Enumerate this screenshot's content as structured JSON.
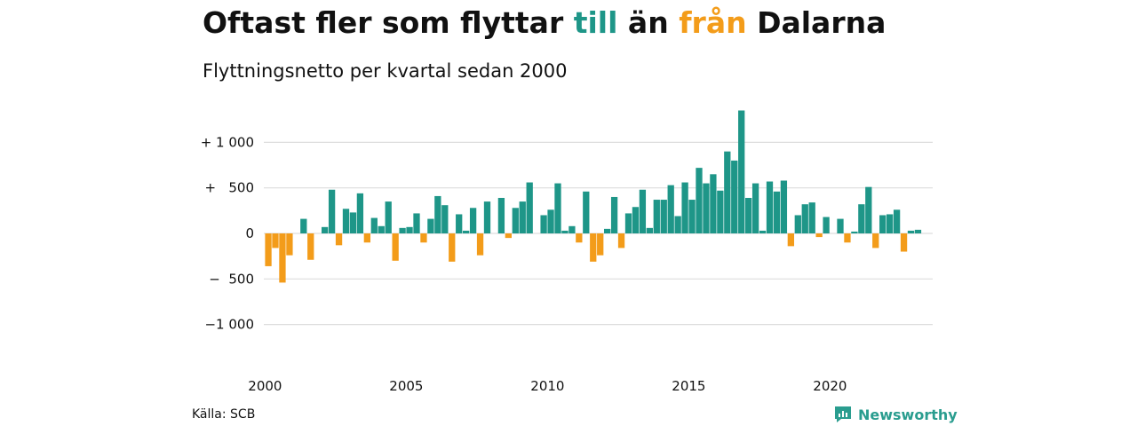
{
  "title": {
    "part1": "Oftast fler som flyttar ",
    "part2": "till",
    "part3": " än ",
    "part4": "från",
    "part5": " Dalarna"
  },
  "subtitle": "Flyttningsnetto per kvartal sedan 2000",
  "source": "Källa: SCB",
  "brand": {
    "name": "Newsworthy",
    "icon": "newsworthy-logo-icon"
  },
  "colors": {
    "positive": "#1e9688",
    "negative": "#f39c1a",
    "grid": "#dddddd",
    "brand": "#2a9d8f"
  },
  "chart_data": {
    "type": "bar",
    "title": "Oftast fler som flyttar till än från Dalarna",
    "subtitle": "Flyttningsnetto per kvartal sedan 2000",
    "xlabel": "",
    "ylabel": "",
    "ylim": [
      -1300,
      1450
    ],
    "grid": true,
    "y_ticks": [
      {
        "value": 1000,
        "label": "+ 1 000"
      },
      {
        "value": 500,
        "label": "+   500"
      },
      {
        "value": 0,
        "label": "0"
      },
      {
        "value": -500,
        "label": "−  500"
      },
      {
        "value": -1000,
        "label": "−1 000"
      }
    ],
    "x_ticks": [
      {
        "year": 2000,
        "label": "2000"
      },
      {
        "year": 2005,
        "label": "2005"
      },
      {
        "year": 2010,
        "label": "2010"
      },
      {
        "year": 2015,
        "label": "2015"
      },
      {
        "year": 2020,
        "label": "2020"
      }
    ],
    "start": "2000-Q1",
    "frequency": "quarter",
    "values": [
      -360,
      -160,
      -540,
      -240,
      0,
      160,
      -290,
      0,
      70,
      480,
      -130,
      270,
      230,
      440,
      -100,
      170,
      80,
      350,
      -300,
      60,
      70,
      220,
      -100,
      160,
      410,
      310,
      -310,
      210,
      30,
      280,
      -240,
      350,
      0,
      390,
      -50,
      280,
      350,
      560,
      0,
      200,
      260,
      550,
      30,
      80,
      -100,
      460,
      -310,
      -240,
      50,
      400,
      -160,
      220,
      290,
      480,
      60,
      370,
      370,
      530,
      190,
      560,
      370,
      720,
      550,
      650,
      470,
      900,
      800,
      1350,
      390,
      550,
      30,
      570,
      460,
      580,
      -140,
      200,
      320,
      340,
      -40,
      180,
      0,
      160,
      -100,
      20,
      320,
      510,
      -160,
      200,
      210,
      260,
      -200,
      30,
      40
    ]
  }
}
